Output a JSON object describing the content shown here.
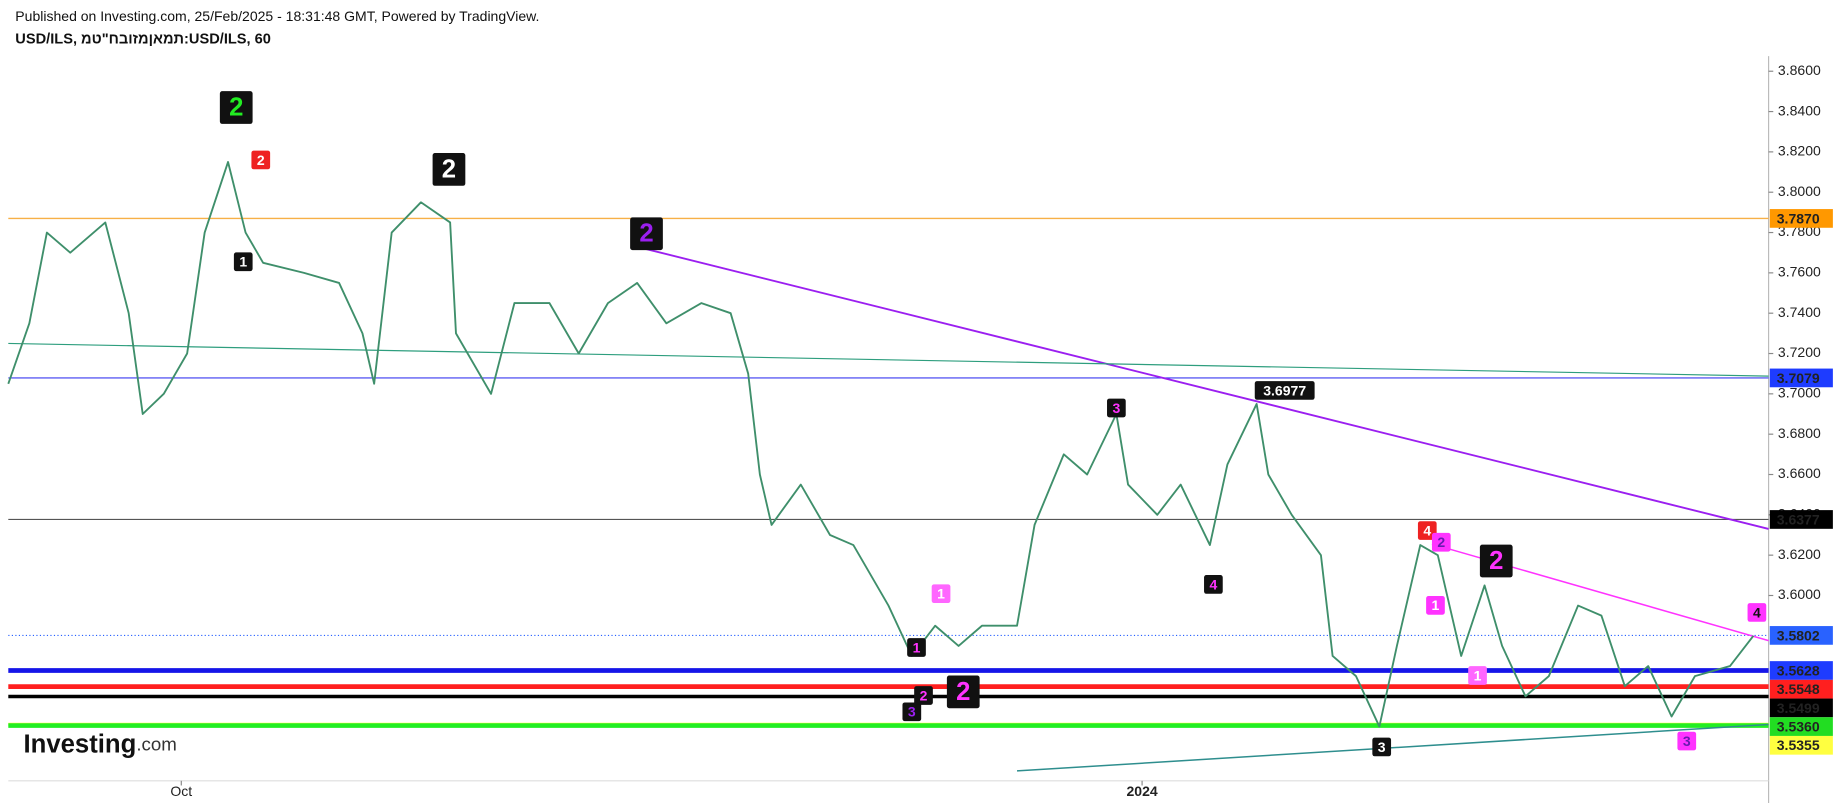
{
  "header": {
    "published": "Published on Investing.com, 25/Feb/2025 - 18:31:48 GMT, Powered by TradingView.",
    "symbol": "USD/ILS, תמאןמזובח\"טמ:USD/ILS, 60"
  },
  "logo": {
    "name": "Investing",
    "suffix": ".com"
  },
  "chart_data": {
    "type": "line",
    "xlim": [
      0,
      1506
    ],
    "ylim": [
      3.5081,
      3.8675
    ],
    "xticks": [
      {
        "value": 148,
        "label": "Oct"
      },
      {
        "value": 970,
        "label": "2024"
      }
    ],
    "yticks": [
      {
        "value": 3.86,
        "label": "3.8600"
      },
      {
        "value": 3.84,
        "label": "3.8400"
      },
      {
        "value": 3.82,
        "label": "3.8200"
      },
      {
        "value": 3.8,
        "label": "3.8000"
      },
      {
        "value": 3.78,
        "label": "3.7800"
      },
      {
        "value": 3.76,
        "label": "3.7600"
      },
      {
        "value": 3.74,
        "label": "3.7400"
      },
      {
        "value": 3.72,
        "label": "3.7200"
      },
      {
        "value": 3.7,
        "label": "3.7000"
      },
      {
        "value": 3.68,
        "label": "3.6800"
      },
      {
        "value": 3.66,
        "label": "3.6600"
      },
      {
        "value": 3.64,
        "label": "3.6400"
      },
      {
        "value": 3.62,
        "label": "3.6200"
      },
      {
        "value": 3.6,
        "label": "3.6000"
      }
    ],
    "series": [
      {
        "name": "USD/ILS",
        "color": "#3f8f6b",
        "x": [
          0,
          18,
          33,
          53,
          83,
          103,
          115,
          133,
          153,
          168,
          188,
          203,
          218,
          253,
          283,
          303,
          313,
          328,
          353,
          378,
          383,
          413,
          433,
          463,
          488,
          513,
          538,
          563,
          593,
          618,
          633,
          643,
          653,
          678,
          703,
          723,
          753,
          773,
          793,
          813,
          833,
          863,
          878,
          903,
          923,
          948,
          958,
          983,
          1003,
          1028,
          1043,
          1068,
          1078,
          1098,
          1123,
          1133,
          1153,
          1173,
          1188,
          1208,
          1223,
          1243,
          1263,
          1278,
          1298,
          1318,
          1343,
          1363,
          1383,
          1403,
          1423,
          1443,
          1473,
          1493
        ],
        "values": [
          3.705,
          3.735,
          3.78,
          3.77,
          3.785,
          3.74,
          3.69,
          3.7,
          3.72,
          3.78,
          3.815,
          3.78,
          3.765,
          3.76,
          3.755,
          3.73,
          3.705,
          3.78,
          3.795,
          3.785,
          3.73,
          3.7,
          3.745,
          3.745,
          3.72,
          3.745,
          3.755,
          3.735,
          3.745,
          3.74,
          3.71,
          3.66,
          3.635,
          3.655,
          3.63,
          3.625,
          3.595,
          3.57,
          3.585,
          3.575,
          3.585,
          3.585,
          3.635,
          3.67,
          3.66,
          3.69,
          3.655,
          3.64,
          3.655,
          3.625,
          3.665,
          3.695,
          3.66,
          3.64,
          3.62,
          3.57,
          3.56,
          3.535,
          3.575,
          3.625,
          3.62,
          3.57,
          3.605,
          3.575,
          3.55,
          3.56,
          3.595,
          3.59,
          3.555,
          3.565,
          3.54,
          3.56,
          3.565,
          3.58
        ]
      }
    ],
    "levels": [
      {
        "value": 3.787,
        "label": "3.7870",
        "color": "#f7b047",
        "width": 1.2,
        "label_bg": "#ff9800",
        "label_color": "#ffffff"
      },
      {
        "value": 3.7079,
        "label": "3.7079",
        "color": "#3a3af0",
        "width": 1,
        "label_bg": "#1e3cff",
        "label_color": "#ffffff"
      },
      {
        "value": 3.6377,
        "label": "3.6377",
        "color": "#555555",
        "width": 1,
        "label_bg": "#000000",
        "label_color": "#ffffff"
      },
      {
        "value": 3.5802,
        "label": "3.5802",
        "color": "#2962ff",
        "width": 1,
        "dotted": true,
        "label_bg": "#2962ff",
        "label_color": "#ffffff"
      },
      {
        "value": 3.5628,
        "label": "3.5628",
        "color": "#1515e8",
        "width": 4,
        "label_bg": "#1e3cff",
        "label_color": "#ffffff"
      },
      {
        "value": 3.5548,
        "label": "3.5548",
        "color": "#ff1f1f",
        "width": 4,
        "label_bg": "#ff1f1f",
        "label_color": "#ffffff"
      },
      {
        "value": 3.5499,
        "label": "3.5499",
        "color": "#000000",
        "width": 3,
        "label_bg": "#000000",
        "label_color": "#ffffff"
      },
      {
        "value": 3.536,
        "label": "3.5360",
        "color": "#ffff40",
        "width": 3,
        "label_bg": "#22dd22",
        "label_color": "#000000"
      },
      {
        "value": 3.5355,
        "label": "3.5355",
        "color": "#22ee22",
        "width": 4,
        "label_bg": "#ffff40",
        "label_color": "#000000"
      }
    ],
    "trendlines": [
      {
        "color": "#9b1ff0",
        "width": 1.6,
        "x": [
          541,
          1506
        ],
        "values": [
          3.7725,
          3.633
        ]
      },
      {
        "color": "#2e9e7e",
        "width": 1,
        "x": [
          0,
          1506
        ],
        "values": [
          3.725,
          3.7088
        ]
      },
      {
        "color": "#ff33ff",
        "width": 1.3,
        "x": [
          1218,
          1506
        ],
        "values": [
          3.6255,
          3.5776
        ]
      },
      {
        "color": "#2e8e8e",
        "width": 1.3,
        "x": [
          863,
          1506
        ],
        "values": [
          3.513,
          3.536
        ]
      }
    ],
    "annotations": [
      {
        "text": "2",
        "x": 195,
        "y": 3.842,
        "size": "big",
        "bg": "#111111",
        "color": "#22ee22"
      },
      {
        "text": "2",
        "x": 216,
        "y": 3.816,
        "size": "small",
        "bg": "#ee2222",
        "color": "#ffffff"
      },
      {
        "text": "1",
        "x": 201,
        "y": 3.7655,
        "size": "small",
        "bg": "#111111",
        "color": "#ffffff"
      },
      {
        "text": "2",
        "x": 377,
        "y": 3.8113,
        "size": "big",
        "bg": "#111111",
        "color": "#ffffff"
      },
      {
        "text": "2",
        "x": 546,
        "y": 3.7794,
        "size": "big",
        "bg": "#111111",
        "color": "#9b1ff0"
      },
      {
        "text": "3",
        "x": 948,
        "y": 3.693,
        "size": "small",
        "bg": "#111111",
        "color": "#ff33ff"
      },
      {
        "text": "3.6977",
        "x": 1092,
        "y": 3.7017,
        "size": "small",
        "bg": "#111111",
        "color": "#ffffff"
      },
      {
        "text": "4",
        "x": 1031,
        "y": 3.6055,
        "size": "small",
        "bg": "#111111",
        "color": "#ff33ff"
      },
      {
        "text": "1",
        "x": 798,
        "y": 3.6009,
        "size": "small",
        "bg": "#ff66ff",
        "color": "#ffffff"
      },
      {
        "text": "1",
        "x": 777,
        "y": 3.5742,
        "size": "small",
        "bg": "#111111",
        "color": "#ff33ff"
      },
      {
        "text": "3",
        "x": 773,
        "y": 3.5423,
        "size": "small",
        "bg": "#111111",
        "color": "#9b1ff0"
      },
      {
        "text": "2",
        "x": 783,
        "y": 3.5504,
        "size": "small",
        "bg": "#111111",
        "color": "#ff33ff"
      },
      {
        "text": "2",
        "x": 817,
        "y": 3.5522,
        "size": "big",
        "bg": "#111111",
        "color": "#ff33ff"
      },
      {
        "text": "3",
        "x": 1175,
        "y": 3.5249,
        "size": "small",
        "bg": "#111111",
        "color": "#ffffff"
      },
      {
        "text": "4",
        "x": 1214,
        "y": 3.6322,
        "size": "small",
        "bg": "#ee2222",
        "color": "#ffffff"
      },
      {
        "text": "2",
        "x": 1226,
        "y": 3.6264,
        "size": "small",
        "bg": "#ff33ff",
        "color": "#6a1ab0"
      },
      {
        "text": "1",
        "x": 1221,
        "y": 3.5951,
        "size": "small",
        "bg": "#ff33ff",
        "color": "#ffffff"
      },
      {
        "text": "2",
        "x": 1273,
        "y": 3.6171,
        "size": "big",
        "bg": "#111111",
        "color": "#ff33ff"
      },
      {
        "text": "1",
        "x": 1257,
        "y": 3.5603,
        "size": "small",
        "bg": "#ff66ff",
        "color": "#ffffff"
      },
      {
        "text": "4",
        "x": 1496,
        "y": 3.5916,
        "size": "small",
        "bg": "#ff33ff",
        "color": "#111111"
      },
      {
        "text": "3",
        "x": 1436,
        "y": 3.5278,
        "size": "small",
        "bg": "#ff33ff",
        "color": "#6a1ab0"
      }
    ]
  }
}
